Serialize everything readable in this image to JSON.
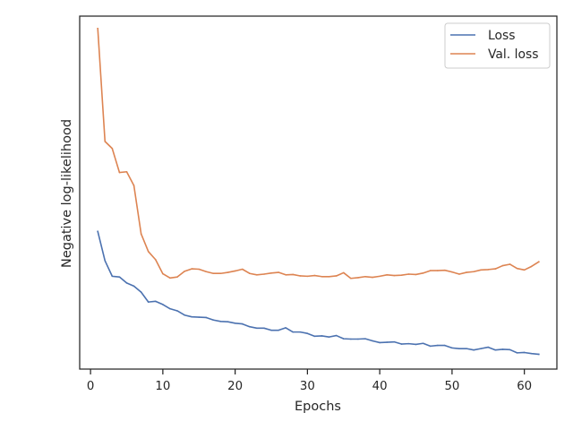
{
  "chart_data": {
    "type": "line",
    "title": "",
    "xlabel": "Epochs",
    "ylabel": "Negative log-likelihood",
    "xlim": [
      -1.5,
      64.5
    ],
    "ylim": [
      0,
      100
    ],
    "xticks": [
      0,
      10,
      20,
      30,
      40,
      50,
      60
    ],
    "yticks_shown": false,
    "grid": false,
    "legend_position": "top-right",
    "x": [
      1,
      2,
      3,
      4,
      5,
      6,
      7,
      8,
      9,
      10,
      11,
      12,
      13,
      14,
      15,
      16,
      17,
      18,
      19,
      20,
      21,
      22,
      23,
      24,
      25,
      26,
      27,
      28,
      29,
      30,
      31,
      32,
      33,
      34,
      35,
      36,
      37,
      38,
      39,
      40,
      41,
      42,
      43,
      44,
      45,
      46,
      47,
      48,
      49,
      50,
      51,
      52,
      53,
      54,
      55,
      56,
      57,
      58,
      59,
      60,
      61,
      62
    ],
    "series": [
      {
        "name": "Loss",
        "color": "#4c72b0",
        "values": [
          39.0,
          30.7,
          26.3,
          26.1,
          24.4,
          23.5,
          21.8,
          19.0,
          19.2,
          18.3,
          17.1,
          16.5,
          15.3,
          14.8,
          14.7,
          14.6,
          13.9,
          13.5,
          13.4,
          13.0,
          12.8,
          12.0,
          11.6,
          11.6,
          11.0,
          11.0,
          11.7,
          10.5,
          10.5,
          10.1,
          9.3,
          9.4,
          9.1,
          9.5,
          8.6,
          8.5,
          8.5,
          8.6,
          8.0,
          7.5,
          7.6,
          7.7,
          7.1,
          7.2,
          7.0,
          7.3,
          6.5,
          6.7,
          6.7,
          6.0,
          5.8,
          5.8,
          5.4,
          5.8,
          6.2,
          5.4,
          5.6,
          5.5,
          4.6,
          4.7,
          4.4,
          4.2
        ]
      },
      {
        "name": "Val. loss",
        "color": "#dd8452",
        "values": [
          96.5,
          64.5,
          62.5,
          55.7,
          55.9,
          52.0,
          38.3,
          33.3,
          31.0,
          27.0,
          25.8,
          26.1,
          27.7,
          28.4,
          28.3,
          27.6,
          27.1,
          27.1,
          27.4,
          27.8,
          28.3,
          27.1,
          26.7,
          26.9,
          27.2,
          27.4,
          26.7,
          26.8,
          26.4,
          26.3,
          26.5,
          26.2,
          26.2,
          26.4,
          27.3,
          25.7,
          25.9,
          26.2,
          26.0,
          26.3,
          26.7,
          26.5,
          26.6,
          26.9,
          26.8,
          27.2,
          27.9,
          27.9,
          28.0,
          27.5,
          26.9,
          27.4,
          27.6,
          28.1,
          28.2,
          28.4,
          29.3,
          29.7,
          28.5,
          28.1,
          29.1,
          30.4
        ]
      }
    ]
  }
}
